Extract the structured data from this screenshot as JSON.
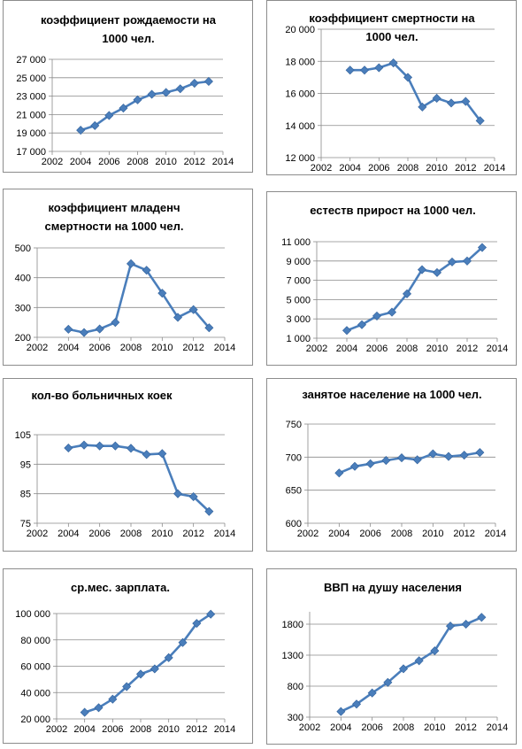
{
  "colors": {
    "series": "#4a7ebb",
    "grid": "#8a8a8a",
    "frame": "#8c8c8c"
  },
  "chart_data": [
    {
      "type": "line",
      "title": "коэффициент рождаемости на 1000 чел.",
      "title_lines": [
        "коэффициент рождаемости на",
        "1000 чел."
      ],
      "x": [
        2004,
        2005,
        2006,
        2007,
        2008,
        2009,
        2010,
        2011,
        2012,
        2013
      ],
      "values": [
        19300,
        19800,
        20900,
        21700,
        22600,
        23200,
        23400,
        23800,
        24400,
        24600
      ],
      "xlim": [
        2002,
        2014
      ],
      "xticks": [
        2002,
        2004,
        2006,
        2008,
        2010,
        2012,
        2014
      ],
      "xtick_labels": [
        "2002",
        "2004",
        "2006",
        "2008",
        "2010",
        "2012",
        "2014"
      ],
      "ylim": [
        17000,
        27000
      ],
      "yticks": [
        17000,
        19000,
        21000,
        23000,
        25000,
        27000
      ],
      "ytick_labels": [
        "17 000",
        "19 000",
        "21 000",
        "23 000",
        "25 000",
        "27 000"
      ],
      "grid": true
    },
    {
      "type": "line",
      "title": "коэффициент смертности на 1000 чел.",
      "title_lines": [
        "коэффициент смертности на",
        "1000 чел."
      ],
      "x": [
        2004,
        2005,
        2006,
        2007,
        2008,
        2009,
        2010,
        2011,
        2012,
        2013
      ],
      "values": [
        17450,
        17450,
        17600,
        17900,
        17000,
        15150,
        15700,
        15400,
        15500,
        14300
      ],
      "xlim": [
        2002,
        2014
      ],
      "xticks": [
        2002,
        2004,
        2006,
        2008,
        2010,
        2012,
        2014
      ],
      "xtick_labels": [
        "2002",
        "2004",
        "2006",
        "2008",
        "2010",
        "2012",
        "2014"
      ],
      "ylim": [
        12000,
        20000
      ],
      "yticks": [
        12000,
        14000,
        16000,
        18000,
        20000
      ],
      "ytick_labels": [
        "12 000",
        "14 000",
        "16 000",
        "18 000",
        "20 000"
      ],
      "grid": true
    },
    {
      "type": "line",
      "title": "коэффициент младенч смертности на 1000 чел.",
      "title_lines": [
        "коэффициент младенч",
        "смертности на 1000 чел."
      ],
      "x": [
        2004,
        2005,
        2006,
        2007,
        2008,
        2009,
        2010,
        2011,
        2012,
        2013
      ],
      "values": [
        227,
        216,
        228,
        250,
        447,
        425,
        348,
        267,
        293,
        232
      ],
      "xlim": [
        2002,
        2014
      ],
      "xticks": [
        2002,
        2004,
        2006,
        2008,
        2010,
        2012,
        2014
      ],
      "xtick_labels": [
        "2002",
        "2004",
        "2006",
        "2008",
        "2010",
        "2012",
        "2014"
      ],
      "ylim": [
        200,
        500
      ],
      "yticks": [
        200,
        300,
        400,
        500
      ],
      "ytick_labels": [
        "200",
        "300",
        "400",
        "500"
      ],
      "grid": true
    },
    {
      "type": "line",
      "title": "естеств прирост на 1000 чел.",
      "title_lines": [
        "естеств прирост  на 1000 чел."
      ],
      "x": [
        2004,
        2005,
        2006,
        2007,
        2008,
        2009,
        2010,
        2011,
        2012,
        2013
      ],
      "values": [
        1800,
        2400,
        3300,
        3700,
        5600,
        8100,
        7800,
        8900,
        9000,
        10400
      ],
      "xlim": [
        2002,
        2014
      ],
      "xticks": [
        2002,
        2004,
        2006,
        2008,
        2010,
        2012,
        2014
      ],
      "xtick_labels": [
        "2002",
        "2004",
        "2006",
        "2008",
        "2010",
        "2012",
        "2014"
      ],
      "ylim": [
        1000,
        11000
      ],
      "yticks": [
        1000,
        3000,
        5000,
        7000,
        9000,
        11000
      ],
      "ytick_labels": [
        "1 000",
        "3 000",
        "5 000",
        "7 000",
        "9 000",
        "11 000"
      ],
      "grid": true
    },
    {
      "type": "line",
      "title": "кол-во больничных коек",
      "title_lines": [
        "кол-во больничных коек"
      ],
      "x": [
        2004,
        2005,
        2006,
        2007,
        2008,
        2009,
        2010,
        2011,
        2012,
        2013
      ],
      "values": [
        100.5,
        101.5,
        101.2,
        101.2,
        100.4,
        98.3,
        98.6,
        85,
        84,
        79
      ],
      "xlim": [
        2002,
        2014
      ],
      "xticks": [
        2002,
        2004,
        2006,
        2008,
        2010,
        2012,
        2014
      ],
      "xtick_labels": [
        "2002",
        "2004",
        "2006",
        "2008",
        "2010",
        "2012",
        "2014"
      ],
      "ylim": [
        75,
        105
      ],
      "yticks": [
        75,
        85,
        95,
        105
      ],
      "ytick_labels": [
        "75",
        "85",
        "95",
        "105"
      ],
      "grid": true
    },
    {
      "type": "line",
      "title": "занятое население на 1000 чел.",
      "title_lines": [
        "занятое население на 1000 чел."
      ],
      "x": [
        2004,
        2005,
        2006,
        2007,
        2008,
        2009,
        2010,
        2011,
        2012,
        2013
      ],
      "values": [
        676,
        686,
        690,
        695,
        699,
        696,
        705,
        701,
        703,
        707
      ],
      "xlim": [
        2002,
        2014
      ],
      "xticks": [
        2002,
        2004,
        2006,
        2008,
        2010,
        2012,
        2014
      ],
      "xtick_labels": [
        "2002",
        "2004",
        "2006",
        "2008",
        "2010",
        "2012",
        "2014"
      ],
      "ylim": [
        600,
        750
      ],
      "yticks": [
        600,
        650,
        700,
        750
      ],
      "ytick_labels": [
        "600",
        "650",
        "700",
        "750"
      ],
      "grid": true
    },
    {
      "type": "line",
      "title": "ср.мес. зарплата.",
      "title_lines": [
        "ср.мес. зарплата."
      ],
      "x": [
        2004,
        2005,
        2006,
        2007,
        2008,
        2009,
        2010,
        2011,
        2012,
        2013
      ],
      "values": [
        25000,
        28500,
        35000,
        44500,
        54000,
        58000,
        66500,
        78000,
        92500,
        99500
      ],
      "xlim": [
        2002,
        2014
      ],
      "xticks": [
        2002,
        2004,
        2006,
        2008,
        2010,
        2012,
        2014
      ],
      "xtick_labels": [
        "2002",
        "2004",
        "2006",
        "2008",
        "2010",
        "2012",
        "2014"
      ],
      "ylim": [
        20000,
        100000
      ],
      "yticks": [
        20000,
        40000,
        60000,
        80000,
        100000
      ],
      "ytick_labels": [
        "20 000",
        "40 000",
        "60 000",
        "80 000",
        "100 000"
      ],
      "grid": true
    },
    {
      "type": "line",
      "title": "ВВП на душу населения",
      "title_lines": [
        "ВВП на душу населения"
      ],
      "x": [
        2004,
        2005,
        2006,
        2007,
        2008,
        2009,
        2010,
        2011,
        2012,
        2013
      ],
      "values": [
        390,
        510,
        690,
        860,
        1080,
        1210,
        1370,
        1770,
        1800,
        1910
      ],
      "xlim": [
        2002,
        2014
      ],
      "xticks": [
        2002,
        2004,
        2006,
        2008,
        2010,
        2012,
        2014
      ],
      "xtick_labels": [
        "2002",
        "2004",
        "2006",
        "2008",
        "2010",
        "2012",
        "2014"
      ],
      "ylim": [
        300,
        2000
      ],
      "yticks": [
        300,
        800,
        1300,
        1800
      ],
      "ytick_labels": [
        "300",
        "800",
        "1300",
        "1800"
      ],
      "grid": true
    }
  ]
}
